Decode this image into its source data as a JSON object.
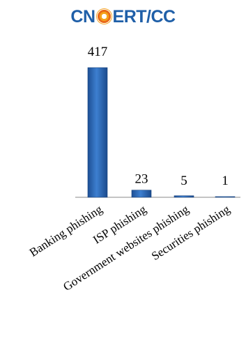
{
  "logo": {
    "left_text": "CN",
    "right_text": "ERT/CC",
    "mark": "cncert-logo-mark",
    "color": "#1f5fa8"
  },
  "chart_data": {
    "type": "bar",
    "categories": [
      "Banking phishing",
      "ISP phishing",
      "Government websites phishing",
      "Securities phishing"
    ],
    "values": [
      417,
      23,
      5,
      1
    ],
    "title": "",
    "xlabel": "",
    "ylabel": "",
    "ylim": [
      0,
      417
    ],
    "grid": false,
    "legend": "none",
    "data_labels": true,
    "bar_color": "#2a62b0"
  }
}
